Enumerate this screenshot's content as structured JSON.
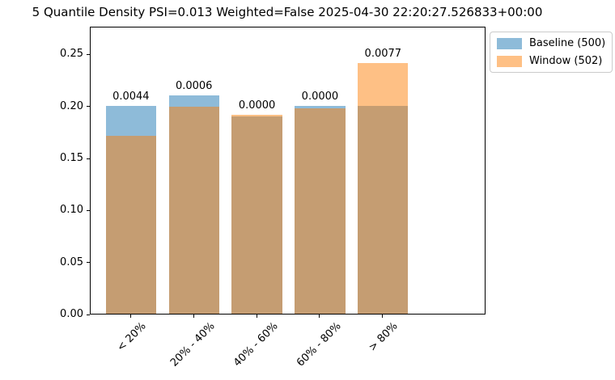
{
  "chart_data": {
    "type": "bar",
    "title": "5 Quantile Density PSI=0.013 Weighted=False 2025-04-30 22:20:27.526833+00:00",
    "categories": [
      "< 20%",
      "20% - 40%",
      "40% - 60%",
      "60% - 80%",
      "> 80%"
    ],
    "series": [
      {
        "name": "Baseline (500)",
        "color": "#8ebbd9",
        "values": [
          0.2,
          0.21,
          0.19,
          0.2,
          0.2
        ]
      },
      {
        "name": "Window (502)",
        "color": "#fec085",
        "values": [
          0.1713,
          0.1992,
          0.1912,
          0.1972,
          0.241
        ]
      }
    ],
    "overlap_color": "#c59d72",
    "bar_labels": [
      "0.0044",
      "0.0006",
      "0.0000",
      "0.0000",
      "0.0077"
    ],
    "xlabel": "",
    "ylabel": "",
    "yticks": [
      "0.00",
      "0.05",
      "0.10",
      "0.15",
      "0.20",
      "0.25"
    ],
    "ylim": [
      0,
      0.2768
    ],
    "grid": false,
    "legend_position": "upper-right-outside"
  }
}
